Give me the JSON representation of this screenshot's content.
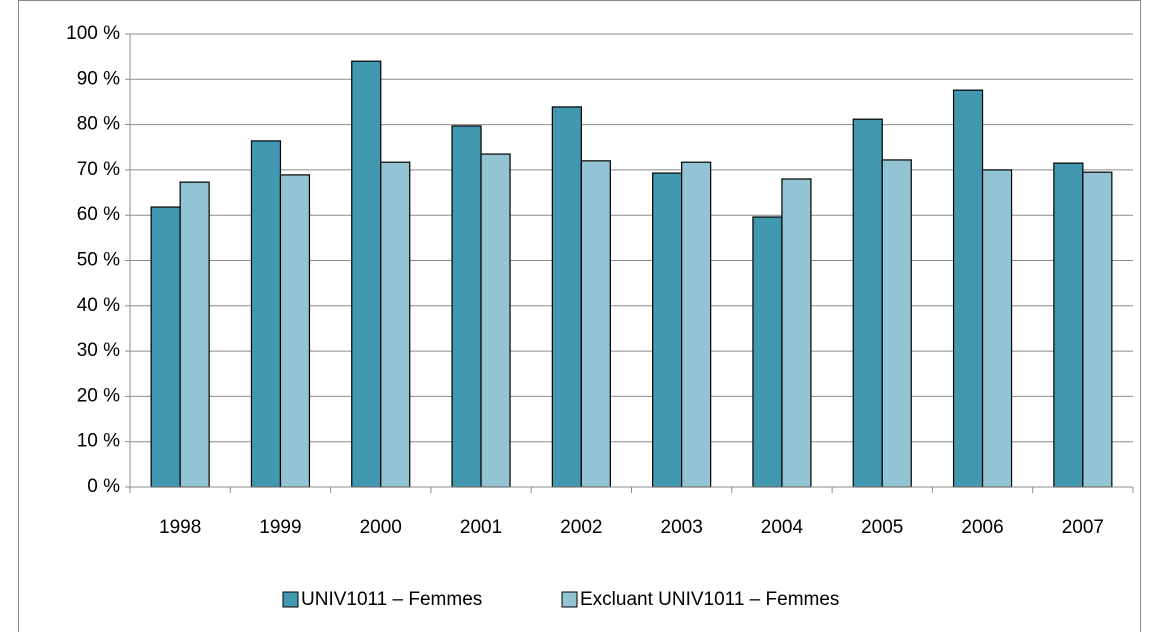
{
  "chart_data": {
    "type": "bar",
    "categories": [
      "1998",
      "1999",
      "2000",
      "2001",
      "2002",
      "2003",
      "2004",
      "2005",
      "2006",
      "2007"
    ],
    "series": [
      {
        "name": "UNIV1011 – Femmes",
        "color": "#4298b1",
        "values": [
          61.8,
          76.4,
          94.0,
          79.7,
          83.9,
          69.3,
          59.6,
          81.2,
          87.6,
          71.5
        ]
      },
      {
        "name": "Excluant UNIV1011 – Femmes",
        "color": "#93c4d4",
        "values": [
          67.3,
          68.9,
          71.7,
          73.5,
          72.0,
          71.7,
          68.0,
          72.2,
          70.0,
          69.5
        ]
      }
    ],
    "ylim": [
      0,
      100
    ],
    "yticks": [
      {
        "value": 0,
        "label": "0 %"
      },
      {
        "value": 10,
        "label": "10 %"
      },
      {
        "value": 20,
        "label": "20 %"
      },
      {
        "value": 30,
        "label": "30 %"
      },
      {
        "value": 40,
        "label": "40 %"
      },
      {
        "value": 50,
        "label": "50 %"
      },
      {
        "value": 60,
        "label": "60 %"
      },
      {
        "value": 70,
        "label": "70 %"
      },
      {
        "value": 80,
        "label": "80 %"
      },
      {
        "value": 90,
        "label": "90 %"
      },
      {
        "value": 100,
        "label": "100 %"
      }
    ],
    "grid": true,
    "legend": "bottom"
  }
}
